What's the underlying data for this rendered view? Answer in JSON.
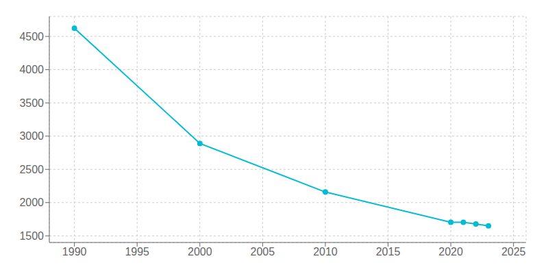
{
  "chart_data": {
    "type": "line",
    "x": [
      1990,
      2000,
      2010,
      2020,
      2021,
      2022,
      2023
    ],
    "values": [
      4623,
      2890,
      2159,
      1705,
      1703,
      1678,
      1651
    ],
    "color": "#00BCD4",
    "marker": "circle",
    "xlim": [
      1988,
      2026
    ],
    "ylim": [
      1400,
      4800
    ],
    "xticks": [
      1990,
      1995,
      2000,
      2005,
      2010,
      2015,
      2020,
      2025
    ],
    "yticks": [
      1500,
      2000,
      2500,
      3000,
      3500,
      4000,
      4500
    ],
    "grid": true
  }
}
